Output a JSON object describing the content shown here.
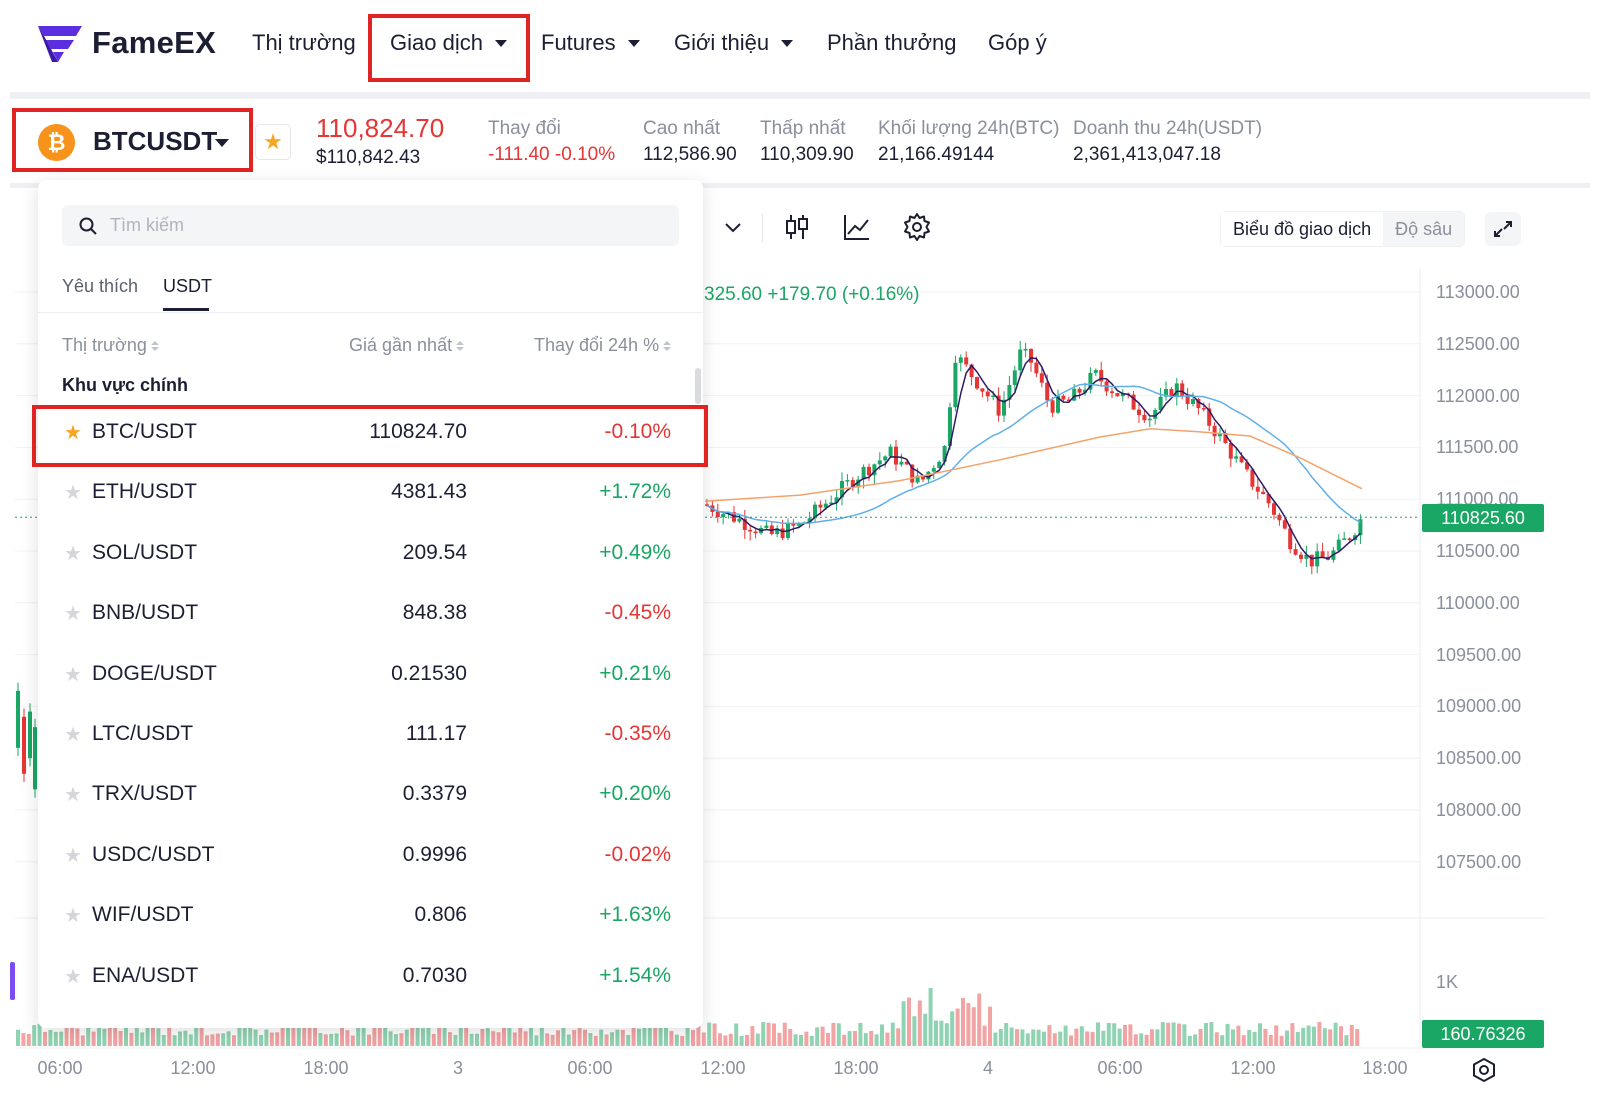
{
  "brand": {
    "name": "FameEX"
  },
  "nav": {
    "items": [
      {
        "label": "Thị trường",
        "dropdown": false
      },
      {
        "label": "Giao dịch",
        "dropdown": true
      },
      {
        "label": "Futures",
        "dropdown": true
      },
      {
        "label": "Giới thiệu",
        "dropdown": true
      },
      {
        "label": "Phần thưởng",
        "dropdown": false
      },
      {
        "label": "Góp ý",
        "dropdown": false
      }
    ]
  },
  "ticker": {
    "pair": "BTCUSDT",
    "coin_symbol": "₿",
    "last_price": "110,824.70",
    "usd_price": "$110,842.43",
    "stats": [
      {
        "label": "Thay đổi",
        "value": "-111.40 -0.10%"
      },
      {
        "label": "Cao nhất",
        "value": "112,586.90"
      },
      {
        "label": "Thấp nhất",
        "value": "110,309.90"
      },
      {
        "label": "Khối lượng 24h(BTC)",
        "value": "21,166.49144"
      },
      {
        "label": "Doanh thu 24h(USDT)",
        "value": "2,361,413,047.18"
      }
    ]
  },
  "chart_toolbar": {
    "view_tabs": [
      "Biểu đồ giao dịch",
      "Độ sâu"
    ],
    "active_view": "Biểu đồ giao dịch"
  },
  "chart_data": {
    "type": "candlestick",
    "legend_text": "325.60  +179.70 (+0.16%)",
    "y_ticks": [
      "113000.00",
      "112500.00",
      "112000.00",
      "111500.00",
      "111000.00",
      "110500.00",
      "110000.00",
      "109500.00",
      "109000.00",
      "108500.00",
      "108000.00",
      "107500.00"
    ],
    "x_ticks": [
      "06:00",
      "12:00",
      "18:00",
      "3",
      "06:00",
      "12:00",
      "18:00",
      "4",
      "06:00",
      "12:00",
      "18:00"
    ],
    "current_price_tag": "110825.60",
    "volume_tick": "1K",
    "volume_tag": "160.76326",
    "ylim": [
      107300,
      113100
    ],
    "last_close": 110825.6,
    "ma_colors": {
      "ma7": "#2c1a66",
      "ma25": "#5fb0e8",
      "ma99": "#f2a36b"
    },
    "up_color": "#1aa664",
    "down_color": "#e53535"
  },
  "dropdown": {
    "search_placeholder": "Tìm kiếm",
    "tabs": [
      "Yêu thích",
      "USDT"
    ],
    "active_tab": "USDT",
    "columns": [
      "Thị trường",
      "Giá gần nhất",
      "Thay đổi 24h %"
    ],
    "section": "Khu vực chính",
    "rows": [
      {
        "symbol": "BTC/USDT",
        "price": "110824.70",
        "change": "-0.10%",
        "favorite": true
      },
      {
        "symbol": "ETH/USDT",
        "price": "4381.43",
        "change": "+1.72%",
        "favorite": false
      },
      {
        "symbol": "SOL/USDT",
        "price": "209.54",
        "change": "+0.49%",
        "favorite": false
      },
      {
        "symbol": "BNB/USDT",
        "price": "848.38",
        "change": "-0.45%",
        "favorite": false
      },
      {
        "symbol": "DOGE/USDT",
        "price": "0.21530",
        "change": "+0.21%",
        "favorite": false
      },
      {
        "symbol": "LTC/USDT",
        "price": "111.17",
        "change": "-0.35%",
        "favorite": false
      },
      {
        "symbol": "TRX/USDT",
        "price": "0.3379",
        "change": "+0.20%",
        "favorite": false
      },
      {
        "symbol": "USDC/USDT",
        "price": "0.9996",
        "change": "-0.02%",
        "favorite": false
      },
      {
        "symbol": "WIF/USDT",
        "price": "0.806",
        "change": "+1.63%",
        "favorite": false
      },
      {
        "symbol": "ENA/USDT",
        "price": "0.7030",
        "change": "+1.54%",
        "favorite": false
      }
    ]
  },
  "colors": {
    "accent": "#5b2ee0",
    "highlight": "#e02424",
    "up": "#1aa664",
    "down": "#e53535"
  }
}
